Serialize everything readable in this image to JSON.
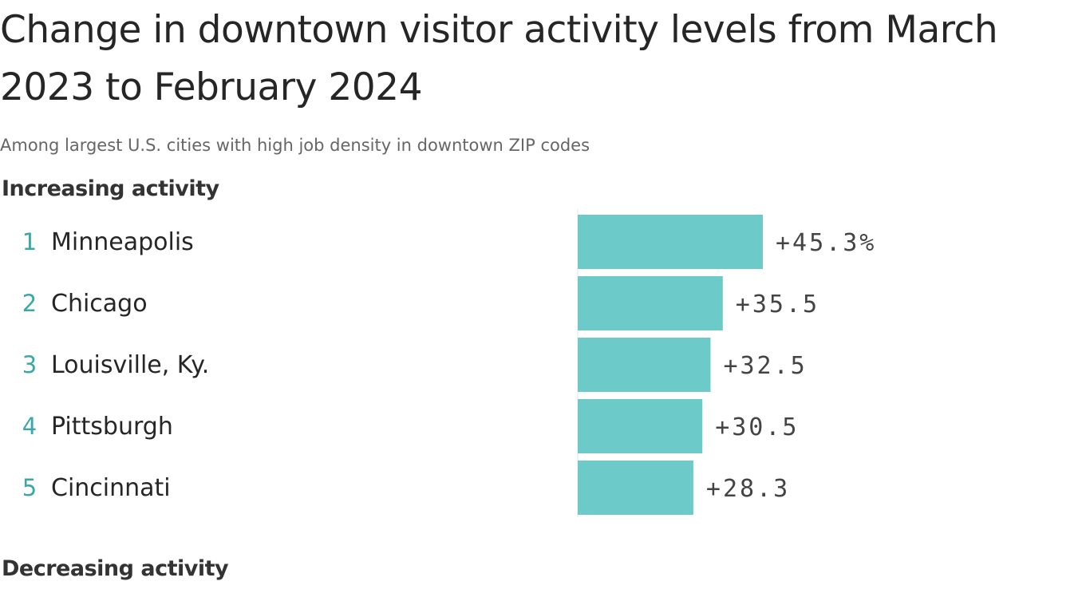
{
  "title": "Change in downtown visitor activity levels from March 2023 to February 2024",
  "subtitle": "Among largest U.S. cities with high job density in downtown ZIP codes",
  "colors": {
    "increase": "#6ccbc8",
    "increase_rank": "#3aa8a6",
    "decrease": "#f5bd63",
    "decrease_rank": "#f0a93a",
    "text": "#262626",
    "value_text": "#444444"
  },
  "chart_data": {
    "type": "bar",
    "orientation": "horizontal",
    "unit": "%",
    "sections": [
      {
        "label": "Increasing activity",
        "rows": [
          {
            "rank": "1",
            "city": "Minneapolis",
            "value": 45.3,
            "label": "+45.3%"
          },
          {
            "rank": "2",
            "city": "Chicago",
            "value": 35.5,
            "label": "+35.5"
          },
          {
            "rank": "3",
            "city": "Louisville, Ky.",
            "value": 32.5,
            "label": "+32.5"
          },
          {
            "rank": "4",
            "city": "Pittsburgh",
            "value": 30.5,
            "label": "+30.5"
          },
          {
            "rank": "5",
            "city": "Cincinnati",
            "value": 28.3,
            "label": "+28.3"
          }
        ]
      },
      {
        "label": "Decreasing activity",
        "rows": []
      }
    ]
  }
}
